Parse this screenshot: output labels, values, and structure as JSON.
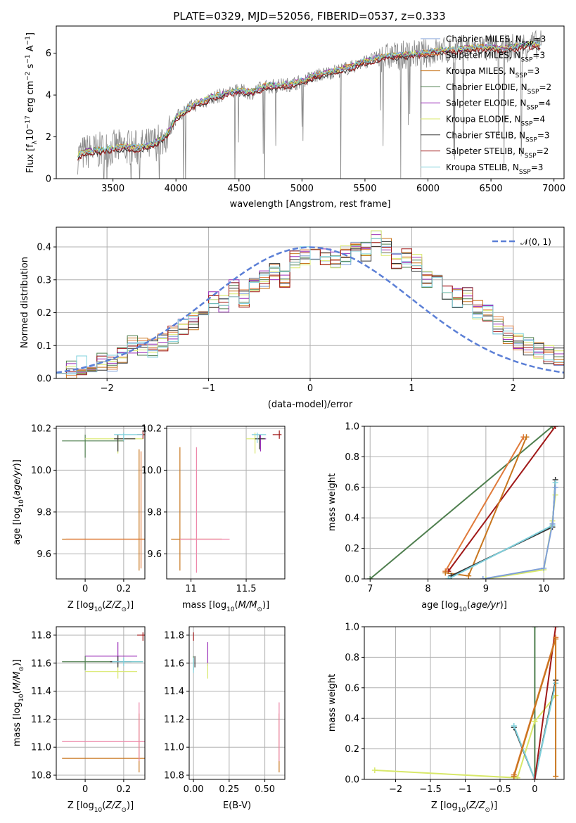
{
  "title": "PLATE=0329, MJD=52056, FIBERID=0537, z=0.333",
  "colors": {
    "chabrier_miles": "#7f9fd8",
    "salpeter_miles": "#e07a3a",
    "kroupa_miles": "#c8761e",
    "chabrier_elodie": "#4f7f4f",
    "salpeter_elodie": "#9a2fb8",
    "kroupa_elodie": "#d8e86a",
    "chabrier_stelib": "#333333",
    "salpeter_stelib": "#a01818",
    "kroupa_stelib": "#7fd0dc",
    "data": "#888888",
    "normal": "#5b7fd6",
    "grid": "#b0b0b0"
  },
  "chart_data": [
    {
      "id": "spectrum",
      "type": "line",
      "title": "PLATE=0329, MJD=52056, FIBERID=0537, z=0.333",
      "xlabel": "wavelength [Angstrom, rest frame]",
      "ylabel": "Flux [f",
      "ylabel_sub": "λ",
      "ylabel_rest": "10",
      "ylabel_exp": "−17",
      "ylabel_units": " erg cm",
      "ylabel_units_exp": "−2",
      "ylabel_units2": " s",
      "ylabel_units2_exp": "−1",
      "ylabel_units3": " A",
      "ylabel_units3_exp": "−1",
      "ylabel_close": "]",
      "xlim": [
        3050,
        7080
      ],
      "ylim": [
        0,
        7.3
      ],
      "xticks": [
        3500,
        4000,
        4500,
        5000,
        5500,
        6000,
        6500,
        7000
      ],
      "yticks": [
        0,
        2,
        4,
        6
      ],
      "continuum": {
        "x": [
          3220,
          3300,
          3400,
          3500,
          3600,
          3700,
          3800,
          3900,
          3950,
          4000,
          4100,
          4200,
          4300,
          4400,
          4500,
          4600,
          4700,
          4800,
          4900,
          5000,
          5100,
          5200,
          5300,
          5400,
          5500,
          5600,
          5700,
          5800,
          5900,
          6000,
          6100,
          6200,
          6300,
          6400,
          6500,
          6600,
          6700,
          6800,
          6900
        ],
        "y": [
          1.1,
          1.3,
          1.35,
          1.45,
          1.5,
          1.45,
          1.6,
          1.9,
          2.3,
          2.9,
          3.4,
          3.65,
          3.9,
          4.05,
          4.2,
          4.1,
          4.4,
          4.45,
          4.5,
          4.65,
          4.9,
          5.05,
          5.2,
          5.35,
          5.6,
          5.75,
          5.85,
          5.9,
          5.95,
          6.0,
          6.1,
          6.15,
          6.2,
          6.25,
          6.25,
          6.2,
          6.3,
          6.4,
          6.4
        ]
      },
      "legend": [
        {
          "name": "Chabrier MILES, N",
          "sub": "SSP",
          "val": "=3",
          "key": "chabrier_miles"
        },
        {
          "name": "Salpeter MILES, N",
          "sub": "SSP",
          "val": "=3",
          "key": "salpeter_miles"
        },
        {
          "name": "Kroupa MILES, N",
          "sub": "SSP",
          "val": "=3",
          "key": "kroupa_miles"
        },
        {
          "name": "Chabrier ELODIE, N",
          "sub": "SSP",
          "val": "=2",
          "key": "chabrier_elodie"
        },
        {
          "name": "Salpeter ELODIE, N",
          "sub": "SSP",
          "val": "=4",
          "key": "salpeter_elodie"
        },
        {
          "name": "Kroupa ELODIE, N",
          "sub": "SSP",
          "val": "=4",
          "key": "kroupa_elodie"
        },
        {
          "name": "Chabrier STELIB, N",
          "sub": "SSP",
          "val": "=3",
          "key": "chabrier_stelib"
        },
        {
          "name": "Salpeter STELIB, N",
          "sub": "SSP",
          "val": "=2",
          "key": "salpeter_stelib"
        },
        {
          "name": "Kroupa STELIB, N",
          "sub": "SSP",
          "val": "=3",
          "key": "kroupa_stelib"
        }
      ],
      "legend_position": "top-right",
      "grid": false
    },
    {
      "id": "residuals",
      "type": "histogram",
      "xlabel": "(data-model)/error",
      "ylabel": "Normed distribution",
      "xlim": [
        -2.5,
        2.5
      ],
      "ylim": [
        0,
        0.46
      ],
      "xticks": [
        -2,
        -1,
        0,
        1,
        2
      ],
      "yticks": [
        0.0,
        0.1,
        0.2,
        0.3,
        0.4
      ],
      "legend": [
        {
          "name": "𝒩(0, 1)",
          "key": "normal"
        }
      ],
      "legend_position": "top-right",
      "grid": true,
      "bin_width": 0.1,
      "bins_start": -2.5,
      "reference": [
        0.045,
        0.03,
        0.04,
        0.045,
        0.05,
        0.045,
        0.065,
        0.105,
        0.1,
        0.09,
        0.11,
        0.13,
        0.155,
        0.175,
        0.21,
        0.24,
        0.225,
        0.275,
        0.245,
        0.29,
        0.3,
        0.33,
        0.305,
        0.36,
        0.375,
        0.38,
        0.37,
        0.365,
        0.375,
        0.395,
        0.385,
        0.42,
        0.4,
        0.36,
        0.365,
        0.355,
        0.3,
        0.32,
        0.265,
        0.245,
        0.25,
        0.21,
        0.195,
        0.16,
        0.135,
        0.115,
        0.1,
        0.09,
        0.07,
        0.065,
        0.05
      ]
    },
    {
      "id": "age_vs_Z",
      "type": "scatter",
      "xlabel": "Z [log",
      "xlabel_sub": "10",
      "xlabel_rest": "(Z/Z",
      "xlabel_sun": "⊙",
      "xlabel_close": ")]",
      "ylabel": "age  [log",
      "ylabel_sub": "10",
      "ylabel_rest": "(age/yr)]",
      "xlim": [
        -0.15,
        0.31
      ],
      "ylim": [
        9.48,
        10.21
      ],
      "xticks": [
        0.0,
        0.2
      ],
      "yticks": [
        9.6,
        9.8,
        10.0,
        10.2
      ],
      "grid": true
    },
    {
      "id": "age_vs_mass",
      "type": "scatter",
      "xlabel": "mass [log",
      "xlabel_sub": "10",
      "xlabel_rest": "(M/M",
      "xlabel_sun": "⊙",
      "xlabel_close": ")]",
      "xlim": [
        10.78,
        11.85
      ],
      "ylim": [
        9.48,
        10.21
      ],
      "xticks": [
        11.0,
        11.5
      ],
      "yticks": [
        9.6,
        9.8,
        10.0,
        10.2
      ],
      "grid": true
    },
    {
      "id": "weight_vs_age",
      "type": "line",
      "xlabel": "age  [log",
      "xlabel_sub": "10",
      "xlabel_rest": "(age/yr)]",
      "ylabel": "mass weight",
      "xlim": [
        6.9,
        10.35
      ],
      "ylim": [
        0,
        1.0
      ],
      "xticks": [
        7,
        8,
        9,
        10
      ],
      "yticks": [
        0.0,
        0.2,
        0.4,
        0.6,
        0.8,
        1.0
      ],
      "grid": true,
      "series": [
        {
          "key": "chabrier_elodie",
          "x": [
            7.0,
            10.15
          ],
          "y": [
            0.0,
            1.0
          ]
        },
        {
          "key": "salpeter_stelib",
          "x": [
            8.35,
            10.2
          ],
          "y": [
            0.05,
            1.0
          ]
        },
        {
          "key": "salpeter_miles",
          "x": [
            8.3,
            9.65
          ],
          "y": [
            0.05,
            0.93
          ]
        },
        {
          "key": "kroupa_miles",
          "x": [
            8.3,
            8.7,
            9.7
          ],
          "y": [
            0.04,
            0.02,
            0.93
          ]
        },
        {
          "key": "chabrier_stelib",
          "x": [
            8.4,
            10.15,
            10.2
          ],
          "y": [
            0.02,
            0.34,
            0.65
          ]
        },
        {
          "key": "kroupa_stelib",
          "x": [
            8.35,
            10.15,
            10.2
          ],
          "y": [
            0.0,
            0.35,
            0.63
          ]
        },
        {
          "key": "kroupa_elodie",
          "x": [
            9.0,
            10.0,
            10.15,
            10.2
          ],
          "y": [
            0.0,
            0.06,
            0.38,
            0.55
          ]
        },
        {
          "key": "chabrier_miles",
          "x": [
            8.95,
            10.0,
            10.15,
            10.2
          ],
          "y": [
            0.0,
            0.07,
            0.36,
            0.6
          ]
        }
      ]
    },
    {
      "id": "mass_vs_Z",
      "type": "scatter",
      "xlabel": "Z [log",
      "xlabel_sub": "10",
      "xlabel_rest": "(Z/Z",
      "xlabel_sun": "⊙",
      "xlabel_close": ")]",
      "ylabel": "mass [log",
      "ylabel_sub": "10",
      "ylabel_rest": "(M/M",
      "ylabel_sun": "⊙",
      "ylabel_close": ")]",
      "xlim": [
        -0.15,
        0.31
      ],
      "ylim": [
        10.77,
        11.86
      ],
      "xticks": [
        0.0,
        0.2
      ],
      "yticks": [
        10.8,
        11.0,
        11.2,
        11.4,
        11.6,
        11.8
      ],
      "grid": true
    },
    {
      "id": "mass_vs_ebv",
      "type": "scatter",
      "xlabel": "E(B-V)",
      "xlim": [
        -0.03,
        0.64
      ],
      "ylim": [
        10.77,
        11.86
      ],
      "xticks": [
        0.0,
        0.25,
        0.5
      ],
      "yticks": [
        10.8,
        11.0,
        11.2,
        11.4,
        11.6,
        11.8
      ],
      "xtick_labels": [
        "0.00",
        "0.25",
        "0.50"
      ],
      "grid": true
    },
    {
      "id": "weight_vs_Z",
      "type": "line",
      "xlabel": "Z [log",
      "xlabel_sub": "10",
      "xlabel_rest": "(Z/Z",
      "xlabel_sun": "⊙",
      "xlabel_close": ")]",
      "ylabel": "mass weight",
      "xlim": [
        -2.45,
        0.42
      ],
      "ylim": [
        0,
        1.0
      ],
      "xticks": [
        -2.0,
        -1.5,
        -1.0,
        -0.5,
        0.0
      ],
      "yticks": [
        0.0,
        0.2,
        0.4,
        0.6,
        0.8,
        1.0
      ],
      "grid": true,
      "series": [
        {
          "key": "chabrier_elodie",
          "x": [
            0.0,
            0.0
          ],
          "y": [
            0.0,
            1.0
          ]
        },
        {
          "key": "kroupa_elodie",
          "x": [
            -2.3,
            -0.25,
            0.0,
            0.3
          ],
          "y": [
            0.06,
            0.01,
            0.38,
            0.55
          ]
        },
        {
          "key": "chabrier_stelib",
          "x": [
            -0.3,
            0.0,
            0.3
          ],
          "y": [
            0.34,
            0.0,
            0.65
          ]
        },
        {
          "key": "kroupa_stelib",
          "x": [
            -0.3,
            0.0,
            0.3
          ],
          "y": [
            0.35,
            0.0,
            0.63
          ]
        },
        {
          "key": "salpeter_stelib",
          "x": [
            0.0,
            0.3
          ],
          "y": [
            0.0,
            1.0
          ]
        },
        {
          "key": "salpeter_miles",
          "x": [
            -0.3,
            0.3
          ],
          "y": [
            0.03,
            0.93
          ]
        },
        {
          "key": "kroupa_miles",
          "x": [
            -0.3,
            0.3,
            0.3
          ],
          "y": [
            0.02,
            0.92,
            0.02
          ]
        }
      ]
    }
  ]
}
